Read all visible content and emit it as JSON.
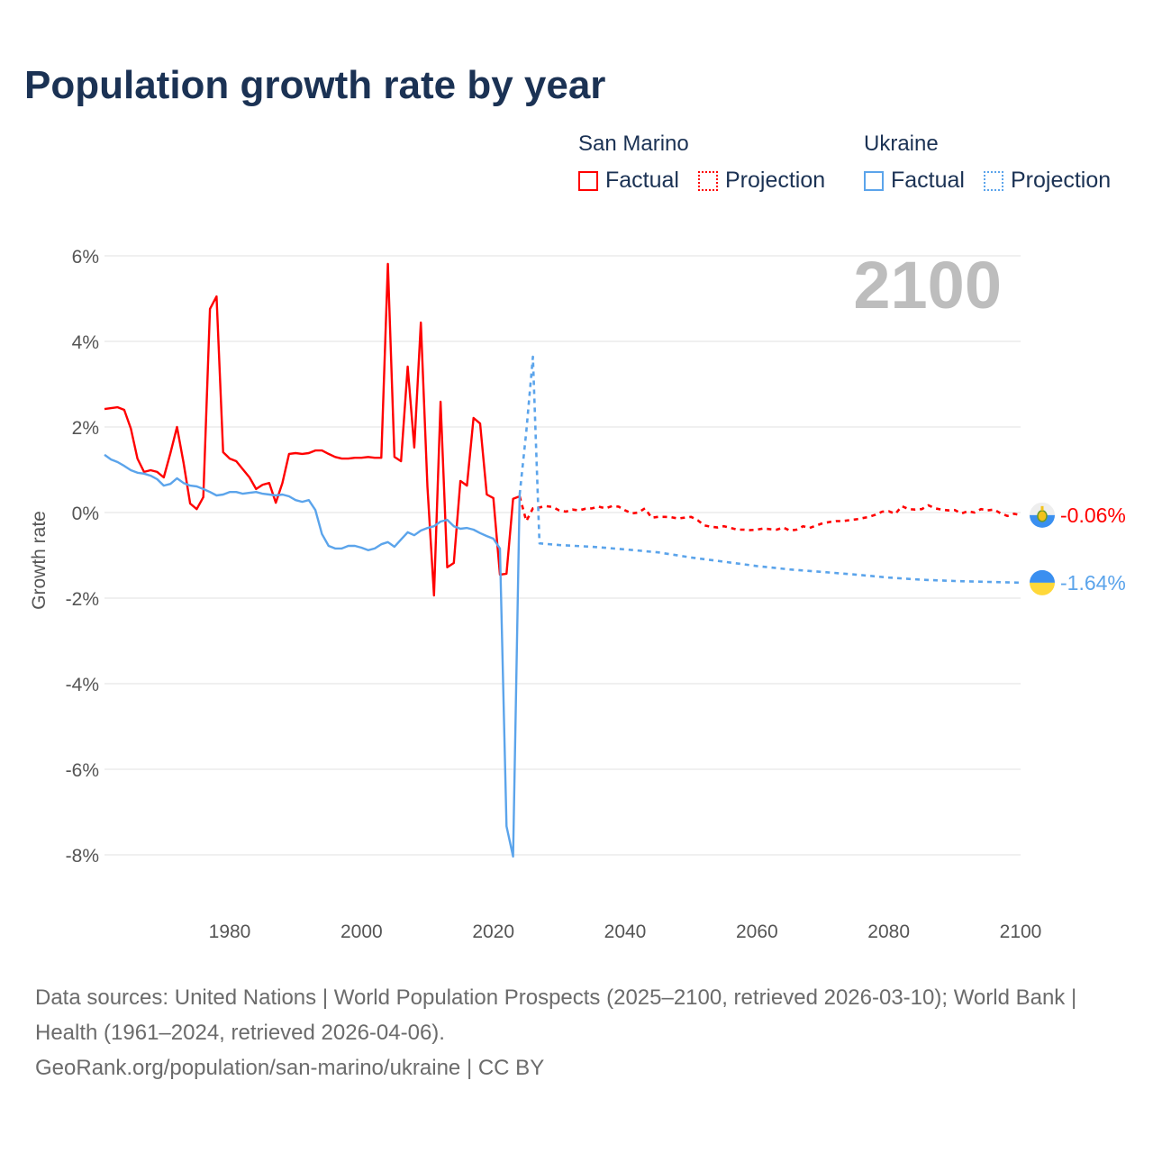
{
  "title": "Population growth rate by year",
  "legend": {
    "groups": [
      {
        "name": "San Marino",
        "factual": "Factual",
        "projection": "Projection",
        "color": "#ff0000"
      },
      {
        "name": "Ukraine",
        "factual": "Factual",
        "projection": "Projection",
        "color": "#5ba4eb"
      }
    ]
  },
  "chart_data": {
    "type": "line",
    "title": "Population growth rate by year",
    "xlabel": "",
    "ylabel": "Growth rate",
    "xlim": [
      1961,
      2100
    ],
    "ylim": [
      -8,
      6
    ],
    "x_ticks": [
      1980,
      2000,
      2020,
      2040,
      2060,
      2080,
      2100
    ],
    "x_tick_labels": [
      "1980",
      "2000",
      "2020",
      "2040",
      "2060",
      "2080",
      "2100"
    ],
    "y_ticks": [
      6,
      4,
      2,
      0,
      -2,
      -4,
      -6,
      -8
    ],
    "y_tick_labels": [
      "6%",
      "4%",
      "2%",
      "0%",
      "-2%",
      "-4%",
      "-6%",
      "-8%"
    ],
    "year_watermark": "2100",
    "grid": true,
    "series": [
      {
        "name": "San Marino Factual",
        "color": "#ff0000",
        "style": "solid",
        "start_year": 1961,
        "values": [
          2.42,
          2.44,
          2.46,
          2.4,
          1.96,
          1.26,
          0.95,
          0.99,
          0.95,
          0.82,
          1.39,
          2.0,
          1.16,
          0.21,
          0.08,
          0.36,
          4.76,
          5.05,
          1.41,
          1.26,
          1.2,
          1.01,
          0.82,
          0.55,
          0.65,
          0.69,
          0.23,
          0.69,
          1.37,
          1.39,
          1.37,
          1.39,
          1.45,
          1.45,
          1.37,
          1.3,
          1.26,
          1.26,
          1.28,
          1.28,
          1.3,
          1.28,
          1.28,
          5.81,
          1.3,
          1.2,
          3.41,
          1.52,
          4.44,
          0.61,
          -1.94,
          2.59,
          -1.28,
          -1.18,
          0.74,
          0.63,
          2.21,
          2.08,
          0.42,
          0.34,
          -1.45,
          -1.43,
          0.32,
          0.38
        ]
      },
      {
        "name": "San Marino Projection",
        "color": "#ff0000",
        "style": "dotted",
        "start_year": 2024,
        "values": [
          0.38,
          -0.2,
          0.1,
          0.12,
          0.15,
          0.13,
          0.05,
          0.02,
          0.07,
          0.05,
          0.09,
          0.1,
          0.14,
          0.1,
          0.15,
          0.14,
          0.05,
          -0.02,
          0.0,
          0.1,
          -0.12,
          -0.1,
          -0.1,
          -0.11,
          -0.14,
          -0.12,
          -0.1,
          -0.18,
          -0.3,
          -0.33,
          -0.35,
          -0.32,
          -0.36,
          -0.4,
          -0.4,
          -0.41,
          -0.4,
          -0.37,
          -0.39,
          -0.4,
          -0.35,
          -0.42,
          -0.4,
          -0.32,
          -0.36,
          -0.3,
          -0.25,
          -0.22,
          -0.2,
          -0.2,
          -0.18,
          -0.16,
          -0.13,
          -0.1,
          -0.05,
          0.02,
          0.03,
          -0.03,
          0.15,
          0.08,
          0.07,
          0.08,
          0.17,
          0.1,
          0.07,
          0.05,
          0.06,
          -0.02,
          0.03,
          0.0,
          0.08,
          0.05,
          0.07,
          -0.02,
          -0.08,
          -0.03,
          -0.06
        ]
      },
      {
        "name": "Ukraine Factual",
        "color": "#5ba4eb",
        "style": "solid",
        "start_year": 1961,
        "values": [
          1.35,
          1.24,
          1.18,
          1.09,
          0.99,
          0.93,
          0.91,
          0.86,
          0.78,
          0.63,
          0.67,
          0.8,
          0.69,
          0.63,
          0.61,
          0.55,
          0.48,
          0.4,
          0.42,
          0.48,
          0.48,
          0.44,
          0.46,
          0.48,
          0.44,
          0.42,
          0.4,
          0.42,
          0.38,
          0.29,
          0.25,
          0.29,
          0.06,
          -0.5,
          -0.78,
          -0.84,
          -0.84,
          -0.78,
          -0.78,
          -0.82,
          -0.88,
          -0.84,
          -0.74,
          -0.69,
          -0.8,
          -0.63,
          -0.46,
          -0.53,
          -0.42,
          -0.36,
          -0.32,
          -0.21,
          -0.17,
          -0.32,
          -0.38,
          -0.36,
          -0.4,
          -0.48,
          -0.55,
          -0.61,
          -0.84,
          -7.33,
          -8.04,
          0.42
        ]
      },
      {
        "name": "Ukraine Projection",
        "color": "#5ba4eb",
        "style": "dotted",
        "x": [
          2024,
          2025,
          2026,
          2027,
          2030,
          2035,
          2040,
          2045,
          2050,
          2055,
          2060,
          2065,
          2070,
          2075,
          2080,
          2085,
          2090,
          2095,
          2100
        ],
        "values": [
          0.42,
          1.9,
          3.64,
          -0.72,
          -0.76,
          -0.8,
          -0.86,
          -0.93,
          -1.05,
          -1.15,
          -1.25,
          -1.33,
          -1.39,
          -1.45,
          -1.52,
          -1.57,
          -1.6,
          -1.62,
          -1.64
        ]
      }
    ],
    "end_labels": [
      {
        "country": "San Marino",
        "value": -0.06,
        "text": "-0.06%",
        "color": "#ff0000",
        "flag": "san-marino-flag"
      },
      {
        "country": "Ukraine",
        "value": -1.64,
        "text": "-1.64%",
        "color": "#5ba4eb",
        "flag": "ukraine-flag"
      }
    ]
  },
  "footer": {
    "sources": "Data sources: United Nations | World Population Prospects (2025–2100, retrieved 2026-03-10); World Bank | Health (1961–2024, retrieved 2026-04-06).",
    "credit": "GeoRank.org/population/san-marino/ukraine | CC BY"
  }
}
